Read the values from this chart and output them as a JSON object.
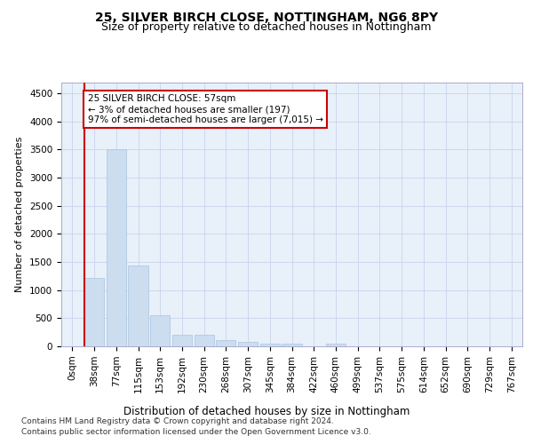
{
  "title1": "25, SILVER BIRCH CLOSE, NOTTINGHAM, NG6 8PY",
  "title2": "Size of property relative to detached houses in Nottingham",
  "xlabel": "Distribution of detached houses by size in Nottingham",
  "ylabel": "Number of detached properties",
  "bar_labels": [
    "0sqm",
    "38sqm",
    "77sqm",
    "115sqm",
    "153sqm",
    "192sqm",
    "230sqm",
    "268sqm",
    "307sqm",
    "345sqm",
    "384sqm",
    "422sqm",
    "460sqm",
    "499sqm",
    "537sqm",
    "575sqm",
    "614sqm",
    "652sqm",
    "690sqm",
    "729sqm",
    "767sqm"
  ],
  "bar_values": [
    5,
    1220,
    3500,
    1440,
    560,
    210,
    200,
    110,
    75,
    55,
    40,
    0,
    40,
    0,
    0,
    0,
    0,
    0,
    0,
    0,
    0
  ],
  "bar_color": "#ccddf0",
  "bar_edge_color": "#a8c4e0",
  "vline_x_index": 1,
  "vline_color": "#cc0000",
  "annotation_text": "25 SILVER BIRCH CLOSE: 57sqm\n← 3% of detached houses are smaller (197)\n97% of semi-detached houses are larger (7,015) →",
  "annotation_box_facecolor": "#ffffff",
  "annotation_box_edgecolor": "#cc0000",
  "ylim": [
    0,
    4700
  ],
  "yticks": [
    0,
    500,
    1000,
    1500,
    2000,
    2500,
    3000,
    3500,
    4000,
    4500
  ],
  "footer1": "Contains HM Land Registry data © Crown copyright and database right 2024.",
  "footer2": "Contains public sector information licensed under the Open Government Licence v3.0.",
  "bg_color": "#e8f0fa",
  "grid_color": "#c8d4ec",
  "title1_fontsize": 10,
  "title2_fontsize": 9,
  "xlabel_fontsize": 8.5,
  "ylabel_fontsize": 8,
  "tick_fontsize": 7.5,
  "annot_fontsize": 7.5,
  "footer_fontsize": 6.5
}
